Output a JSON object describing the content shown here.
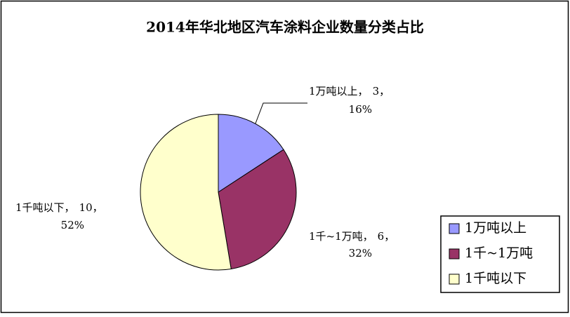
{
  "chart_data": {
    "type": "pie",
    "title": "2014年华北地区汽车涂料企业数量分类占比",
    "categories": [
      "1万吨以上",
      "1千~1万吨",
      "1千吨以下"
    ],
    "values": [
      3,
      6,
      10
    ],
    "percents": [
      16,
      32,
      52
    ],
    "percent_labels": [
      "16%",
      "32%",
      "52%"
    ],
    "label_separator": "，",
    "colors": [
      "#9999ff",
      "#993366",
      "#ffffcc"
    ],
    "legend": "right-bottom"
  }
}
